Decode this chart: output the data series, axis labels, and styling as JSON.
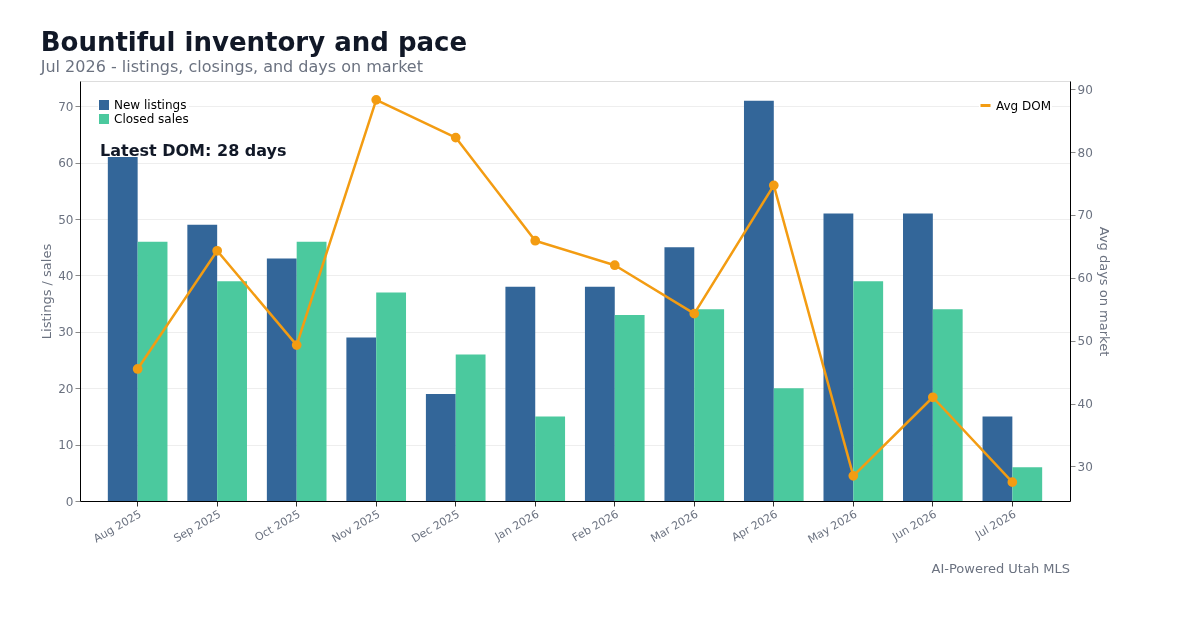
{
  "chart_data": {
    "type": "bar",
    "title": "Bountiful inventory and pace",
    "subtitle": "Jul 2026 - listings, closings, and days on market",
    "ylabel": "Listings / sales",
    "y2label": "Avg days on market",
    "categories": [
      "Aug 2025",
      "Sep 2025",
      "Oct 2025",
      "Nov 2025",
      "Dec 2025",
      "Jan 2026",
      "Feb 2026",
      "Mar 2026",
      "Apr 2026",
      "May 2026",
      "Jun 2026",
      "Jul 2026"
    ],
    "series": [
      {
        "name": "New listings",
        "color": "#336699",
        "values": [
          61,
          49,
          43,
          29,
          19,
          38,
          38,
          45,
          71,
          51,
          51,
          15
        ]
      },
      {
        "name": "Closed sales",
        "color": "#4bc99e",
        "values": [
          46,
          39,
          46,
          37,
          26,
          15,
          33,
          34,
          20,
          39,
          34,
          6
        ]
      },
      {
        "name": "Avg DOM",
        "color": "#f39c12",
        "type": "line",
        "axis": "y2",
        "marker": "circle",
        "values": [
          45.5,
          64.3,
          49.3,
          88.3,
          82.3,
          65.9,
          62.0,
          54.3,
          74.7,
          28.5,
          41.0,
          27.5
        ]
      }
    ],
    "ylim": [
      0,
      74.5
    ],
    "yticks": [
      0,
      10,
      20,
      30,
      40,
      50,
      60,
      70
    ],
    "y2lim": [
      24.5,
      91.3
    ],
    "y2ticks": [
      30,
      40,
      50,
      60,
      70,
      80,
      90
    ],
    "grid": "y",
    "legend": "top left",
    "annotations": [
      "Latest DOM: 28 days",
      "AI-Powered Utah MLS"
    ]
  }
}
